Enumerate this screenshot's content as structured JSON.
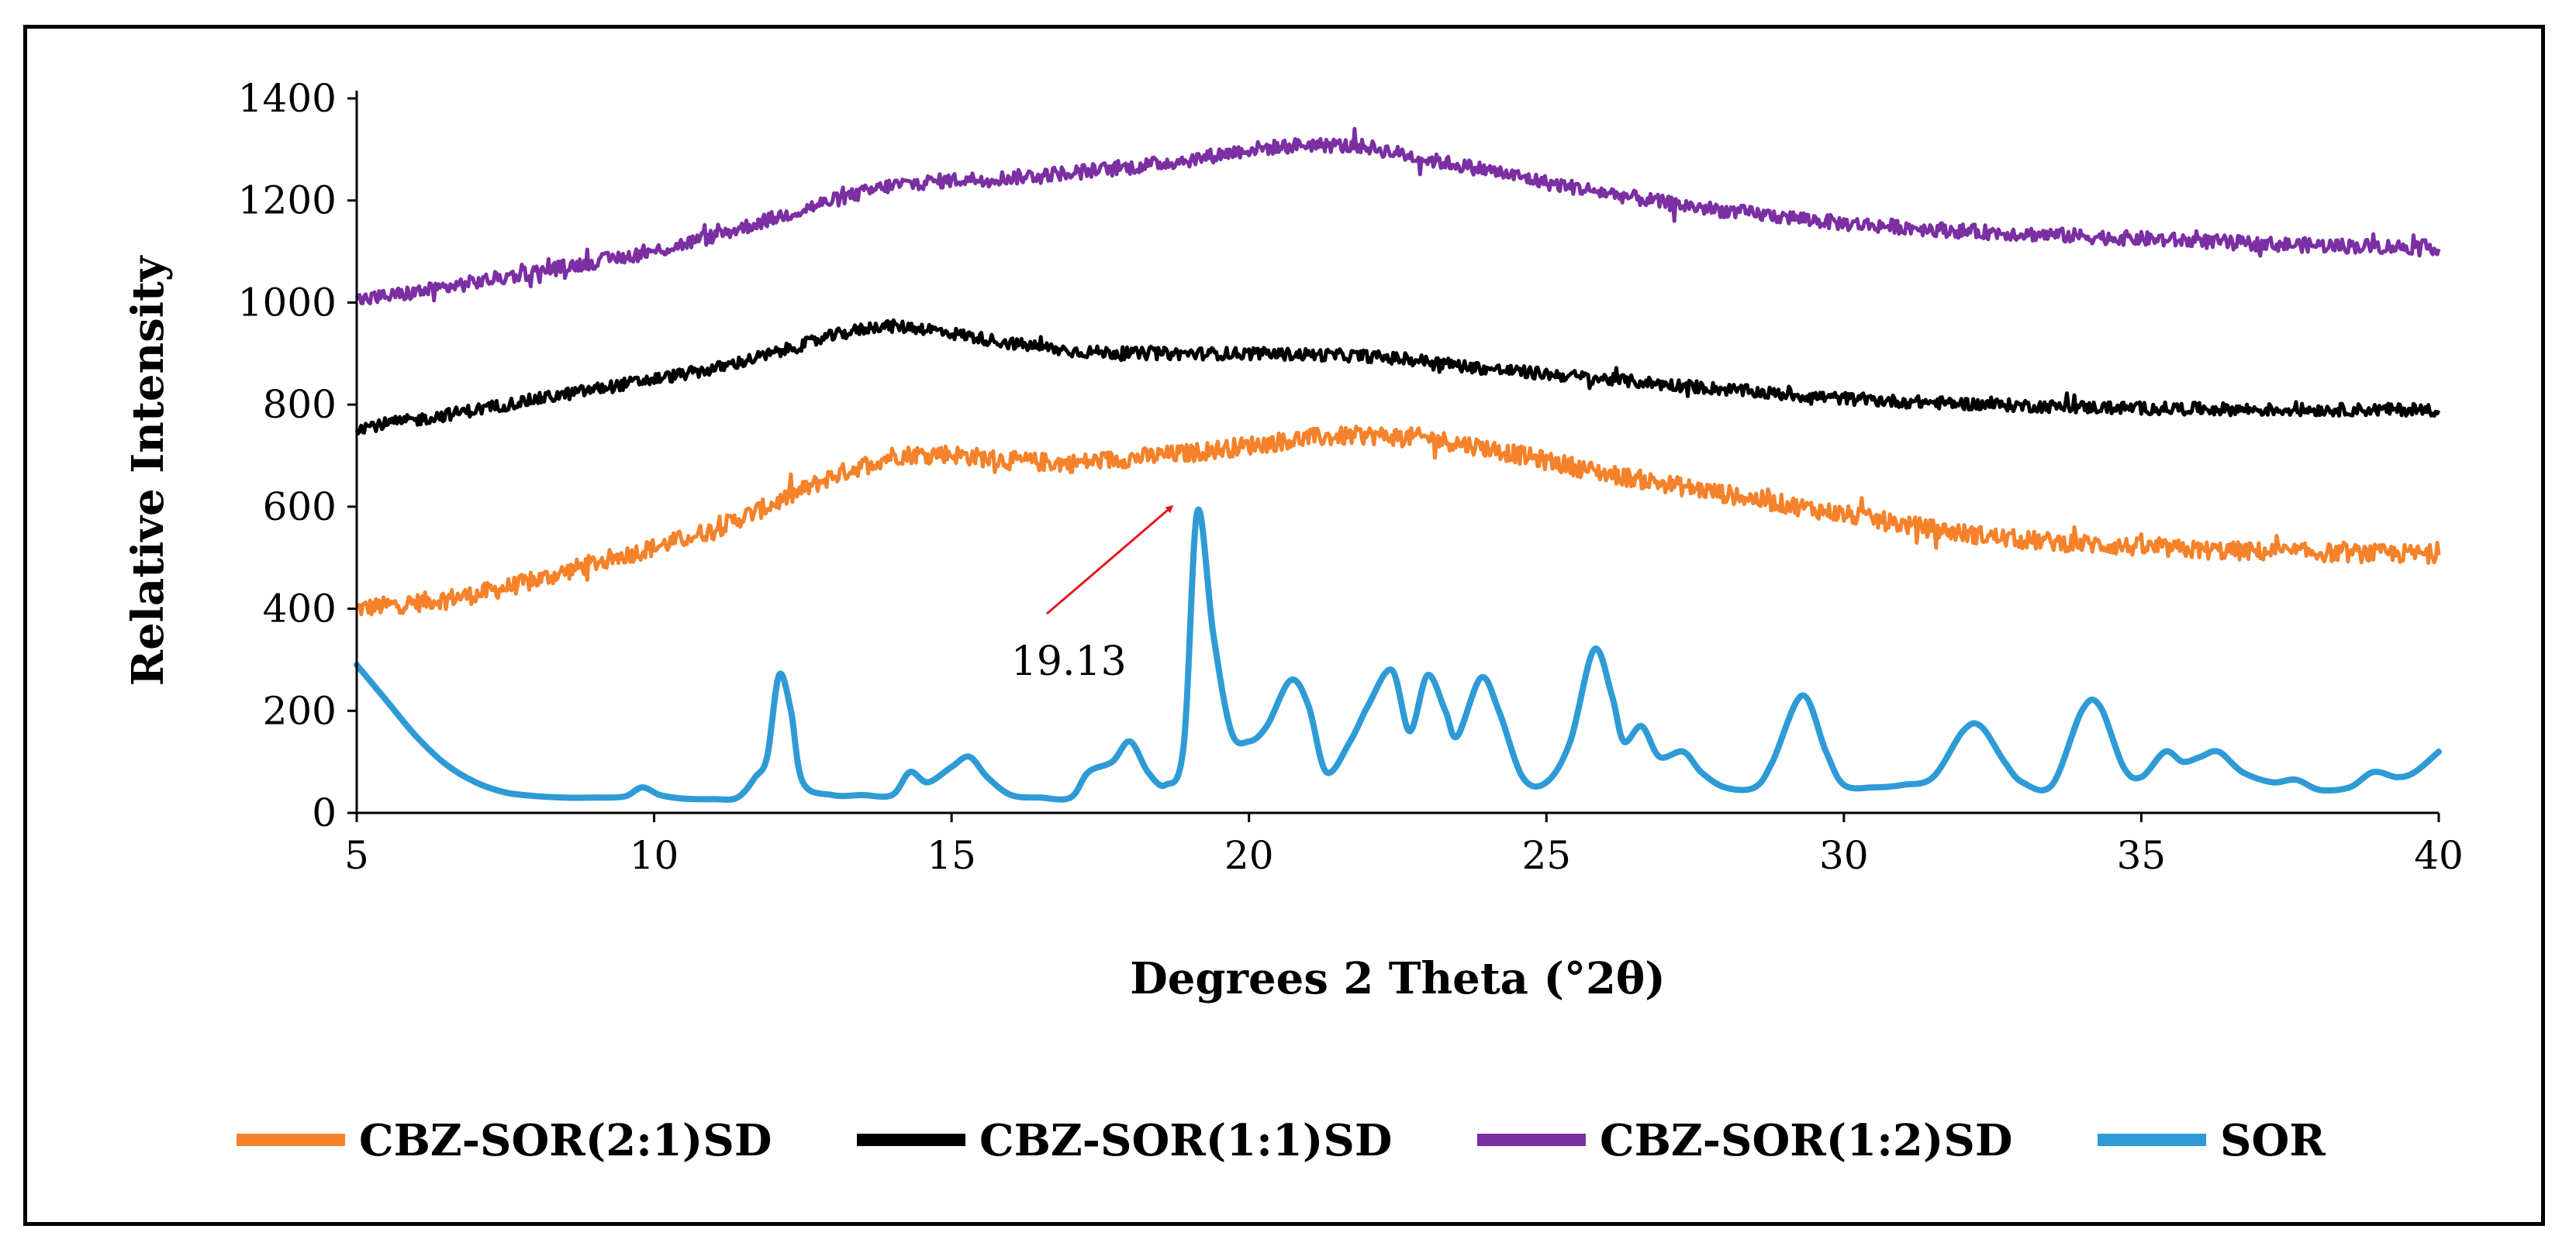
{
  "chart_data": {
    "type": "line",
    "title": "",
    "xlabel": "Degrees 2 Theta (°2θ)",
    "ylabel": "Relative Intensity",
    "xlim": [
      5,
      40
    ],
    "ylim": [
      0,
      1400
    ],
    "xticks": [
      5,
      10,
      15,
      20,
      25,
      30,
      35,
      40
    ],
    "yticks": [
      0,
      200,
      400,
      600,
      800,
      1000,
      1200,
      1400
    ],
    "grid": false,
    "legend_position": "bottom",
    "annotation": {
      "text": "19.13",
      "points_to": [
        18.7,
        600
      ],
      "from": [
        16.6,
        390
      ]
    },
    "series": [
      {
        "name": "CBZ-SOR(2:1)SD",
        "color": "#F5822A",
        "noise": 18,
        "points": [
          [
            5,
            400
          ],
          [
            6,
            412
          ],
          [
            7,
            428
          ],
          [
            8,
            455
          ],
          [
            9,
            490
          ],
          [
            10,
            520
          ],
          [
            11,
            555
          ],
          [
            12,
            605
          ],
          [
            13,
            660
          ],
          [
            14,
            700
          ],
          [
            14.8,
            705
          ],
          [
            16,
            690
          ],
          [
            17,
            685
          ],
          [
            18,
            695
          ],
          [
            19,
            705
          ],
          [
            20,
            720
          ],
          [
            21,
            735
          ],
          [
            22,
            740
          ],
          [
            23,
            735
          ],
          [
            24,
            715
          ],
          [
            25,
            690
          ],
          [
            26,
            665
          ],
          [
            27,
            645
          ],
          [
            28,
            625
          ],
          [
            29,
            605
          ],
          [
            30,
            585
          ],
          [
            31,
            565
          ],
          [
            32,
            548
          ],
          [
            33,
            535
          ],
          [
            34,
            528
          ],
          [
            35,
            520
          ],
          [
            36,
            515
          ],
          [
            37,
            512
          ],
          [
            38,
            510
          ],
          [
            39,
            508
          ],
          [
            40,
            508
          ]
        ]
      },
      {
        "name": "CBZ-SOR(1:1)SD",
        "color": "#000000",
        "noise": 12,
        "points": [
          [
            5,
            755
          ],
          [
            6,
            770
          ],
          [
            7,
            790
          ],
          [
            8,
            810
          ],
          [
            9,
            830
          ],
          [
            10,
            850
          ],
          [
            11,
            870
          ],
          [
            12,
            900
          ],
          [
            13,
            935
          ],
          [
            13.8,
            955
          ],
          [
            14.5,
            950
          ],
          [
            15,
            940
          ],
          [
            16,
            920
          ],
          [
            17,
            905
          ],
          [
            18,
            900
          ],
          [
            19,
            900
          ],
          [
            20,
            900
          ],
          [
            21,
            898
          ],
          [
            22,
            895
          ],
          [
            23,
            885
          ],
          [
            24,
            870
          ],
          [
            25,
            860
          ],
          [
            26,
            850
          ],
          [
            27,
            840
          ],
          [
            28,
            830
          ],
          [
            29,
            820
          ],
          [
            30,
            812
          ],
          [
            31,
            806
          ],
          [
            32,
            802
          ],
          [
            33,
            798
          ],
          [
            34,
            795
          ],
          [
            35,
            793
          ],
          [
            36,
            792
          ],
          [
            37,
            790
          ],
          [
            38,
            790
          ],
          [
            39,
            790
          ],
          [
            40,
            790
          ]
        ]
      },
      {
        "name": "CBZ-SOR(1:2)SD",
        "color": "#7B2FA3",
        "noise": 14,
        "points": [
          [
            5,
            1005
          ],
          [
            6,
            1020
          ],
          [
            7,
            1040
          ],
          [
            8,
            1060
          ],
          [
            9,
            1080
          ],
          [
            10,
            1100
          ],
          [
            11,
            1130
          ],
          [
            12,
            1165
          ],
          [
            13,
            1200
          ],
          [
            14,
            1230
          ],
          [
            15,
            1240
          ],
          [
            16,
            1245
          ],
          [
            17,
            1255
          ],
          [
            18,
            1265
          ],
          [
            19,
            1280
          ],
          [
            20,
            1300
          ],
          [
            21,
            1310
          ],
          [
            22,
            1305
          ],
          [
            23,
            1280
          ],
          [
            24,
            1260
          ],
          [
            25,
            1235
          ],
          [
            26,
            1215
          ],
          [
            27,
            1195
          ],
          [
            28,
            1180
          ],
          [
            29,
            1168
          ],
          [
            30,
            1155
          ],
          [
            31,
            1148
          ],
          [
            32,
            1140
          ],
          [
            33,
            1135
          ],
          [
            34,
            1130
          ],
          [
            35,
            1125
          ],
          [
            36,
            1120
          ],
          [
            37,
            1115
          ],
          [
            38,
            1112
          ],
          [
            39,
            1110
          ],
          [
            40,
            1108
          ]
        ]
      },
      {
        "name": "SOR",
        "color": "#2E9BD6",
        "noise": 0,
        "points": [
          [
            5,
            290
          ],
          [
            5.5,
            220
          ],
          [
            6,
            150
          ],
          [
            6.5,
            95
          ],
          [
            7,
            60
          ],
          [
            7.5,
            40
          ],
          [
            8,
            33
          ],
          [
            8.5,
            30
          ],
          [
            9,
            30
          ],
          [
            9.5,
            32
          ],
          [
            9.8,
            50
          ],
          [
            10.1,
            35
          ],
          [
            10.5,
            28
          ],
          [
            11,
            27
          ],
          [
            11.4,
            30
          ],
          [
            11.7,
            70
          ],
          [
            11.9,
            110
          ],
          [
            12.1,
            270
          ],
          [
            12.3,
            200
          ],
          [
            12.5,
            60
          ],
          [
            13,
            35
          ],
          [
            13.5,
            35
          ],
          [
            14,
            35
          ],
          [
            14.3,
            80
          ],
          [
            14.6,
            60
          ],
          [
            15,
            90
          ],
          [
            15.3,
            110
          ],
          [
            15.6,
            70
          ],
          [
            16,
            35
          ],
          [
            16.5,
            30
          ],
          [
            17,
            30
          ],
          [
            17.3,
            80
          ],
          [
            17.7,
            100
          ],
          [
            18,
            140
          ],
          [
            18.3,
            80
          ],
          [
            18.6,
            55
          ],
          [
            18.9,
            130
          ],
          [
            19.13,
            590
          ],
          [
            19.4,
            350
          ],
          [
            19.7,
            160
          ],
          [
            20,
            140
          ],
          [
            20.3,
            170
          ],
          [
            20.7,
            260
          ],
          [
            21,
            210
          ],
          [
            21.3,
            80
          ],
          [
            21.7,
            140
          ],
          [
            22,
            210
          ],
          [
            22.4,
            280
          ],
          [
            22.7,
            160
          ],
          [
            23,
            270
          ],
          [
            23.3,
            200
          ],
          [
            23.5,
            150
          ],
          [
            23.9,
            265
          ],
          [
            24.2,
            200
          ],
          [
            24.6,
            70
          ],
          [
            25,
            60
          ],
          [
            25.4,
            140
          ],
          [
            25.8,
            320
          ],
          [
            26.1,
            230
          ],
          [
            26.3,
            140
          ],
          [
            26.6,
            170
          ],
          [
            26.9,
            110
          ],
          [
            27.3,
            120
          ],
          [
            27.6,
            80
          ],
          [
            28,
            50
          ],
          [
            28.5,
            50
          ],
          [
            28.8,
            100
          ],
          [
            29.3,
            230
          ],
          [
            29.7,
            120
          ],
          [
            30,
            55
          ],
          [
            30.5,
            50
          ],
          [
            31,
            55
          ],
          [
            31.5,
            70
          ],
          [
            32,
            160
          ],
          [
            32.3,
            170
          ],
          [
            32.7,
            100
          ],
          [
            33,
            60
          ],
          [
            33.5,
            55
          ],
          [
            34,
            200
          ],
          [
            34.3,
            210
          ],
          [
            34.7,
            90
          ],
          [
            35,
            70
          ],
          [
            35.4,
            120
          ],
          [
            35.7,
            100
          ],
          [
            36,
            110
          ],
          [
            36.3,
            120
          ],
          [
            36.7,
            80
          ],
          [
            37.2,
            60
          ],
          [
            37.6,
            65
          ],
          [
            38,
            45
          ],
          [
            38.5,
            50
          ],
          [
            38.9,
            80
          ],
          [
            39.3,
            70
          ],
          [
            39.6,
            80
          ],
          [
            40,
            120
          ]
        ]
      }
    ]
  }
}
